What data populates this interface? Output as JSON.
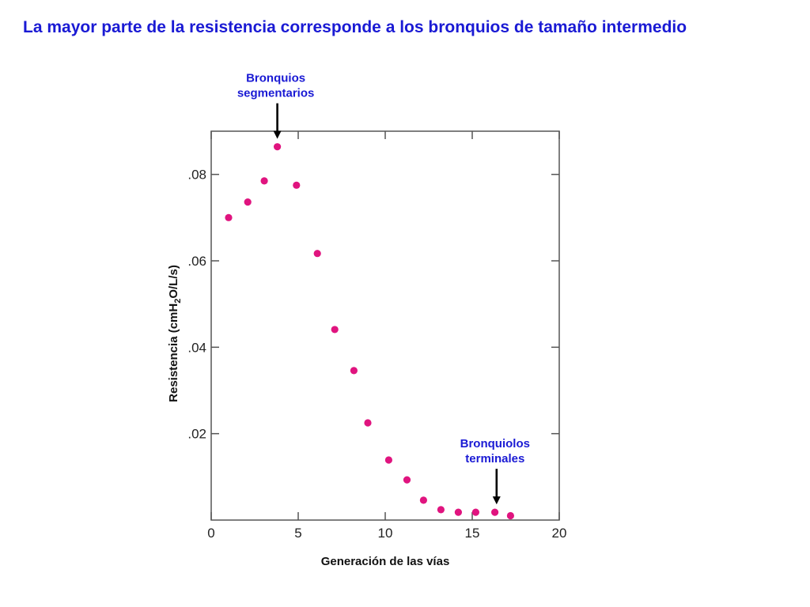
{
  "title": "La mayor parte de la resistencia corresponde a los bronquios de tamaño intermedio",
  "colors": {
    "title": "#1a1ad4",
    "annotation": "#1a1ad4",
    "points": "#e0147f",
    "axis": "#555555"
  },
  "chart_data": {
    "type": "scatter",
    "xlabel": "Generación de las vías",
    "ylabel": "Resistencia (cmH2O/L/s)",
    "ylabel_parts": {
      "pre": "Resistencia (cmH",
      "sub": "2",
      "post": "O/L/s)"
    },
    "xlim": [
      0,
      20
    ],
    "ylim": [
      0,
      0.09
    ],
    "x_ticks": [
      0,
      5,
      10,
      15,
      20
    ],
    "x_tick_labels": [
      "0",
      "5",
      "10",
      "15",
      "20"
    ],
    "y_ticks": [
      0.02,
      0.04,
      0.06,
      0.08
    ],
    "y_tick_labels": [
      ".02",
      ".04",
      ".06",
      ".08"
    ],
    "grid": false,
    "points": [
      {
        "x": 1.0,
        "y": 0.07
      },
      {
        "x": 2.1,
        "y": 0.0736
      },
      {
        "x": 3.05,
        "y": 0.0785
      },
      {
        "x": 3.8,
        "y": 0.0864
      },
      {
        "x": 4.9,
        "y": 0.0775
      },
      {
        "x": 6.1,
        "y": 0.0617
      },
      {
        "x": 7.1,
        "y": 0.0441
      },
      {
        "x": 8.2,
        "y": 0.0346
      },
      {
        "x": 9.0,
        "y": 0.0225
      },
      {
        "x": 10.2,
        "y": 0.0139
      },
      {
        "x": 11.25,
        "y": 0.0093
      },
      {
        "x": 12.2,
        "y": 0.0046
      },
      {
        "x": 13.2,
        "y": 0.0024
      },
      {
        "x": 14.2,
        "y": 0.0018
      },
      {
        "x": 15.2,
        "y": 0.0018
      },
      {
        "x": 16.3,
        "y": 0.0018
      },
      {
        "x": 17.2,
        "y": 0.001
      }
    ],
    "annotations": [
      {
        "lines": [
          "Bronquios",
          "segmentarios"
        ],
        "target_x": 3.8,
        "position": "above"
      },
      {
        "lines": [
          "Bronquiolos",
          "terminales"
        ],
        "target_x": 16.4,
        "position": "above"
      }
    ]
  }
}
